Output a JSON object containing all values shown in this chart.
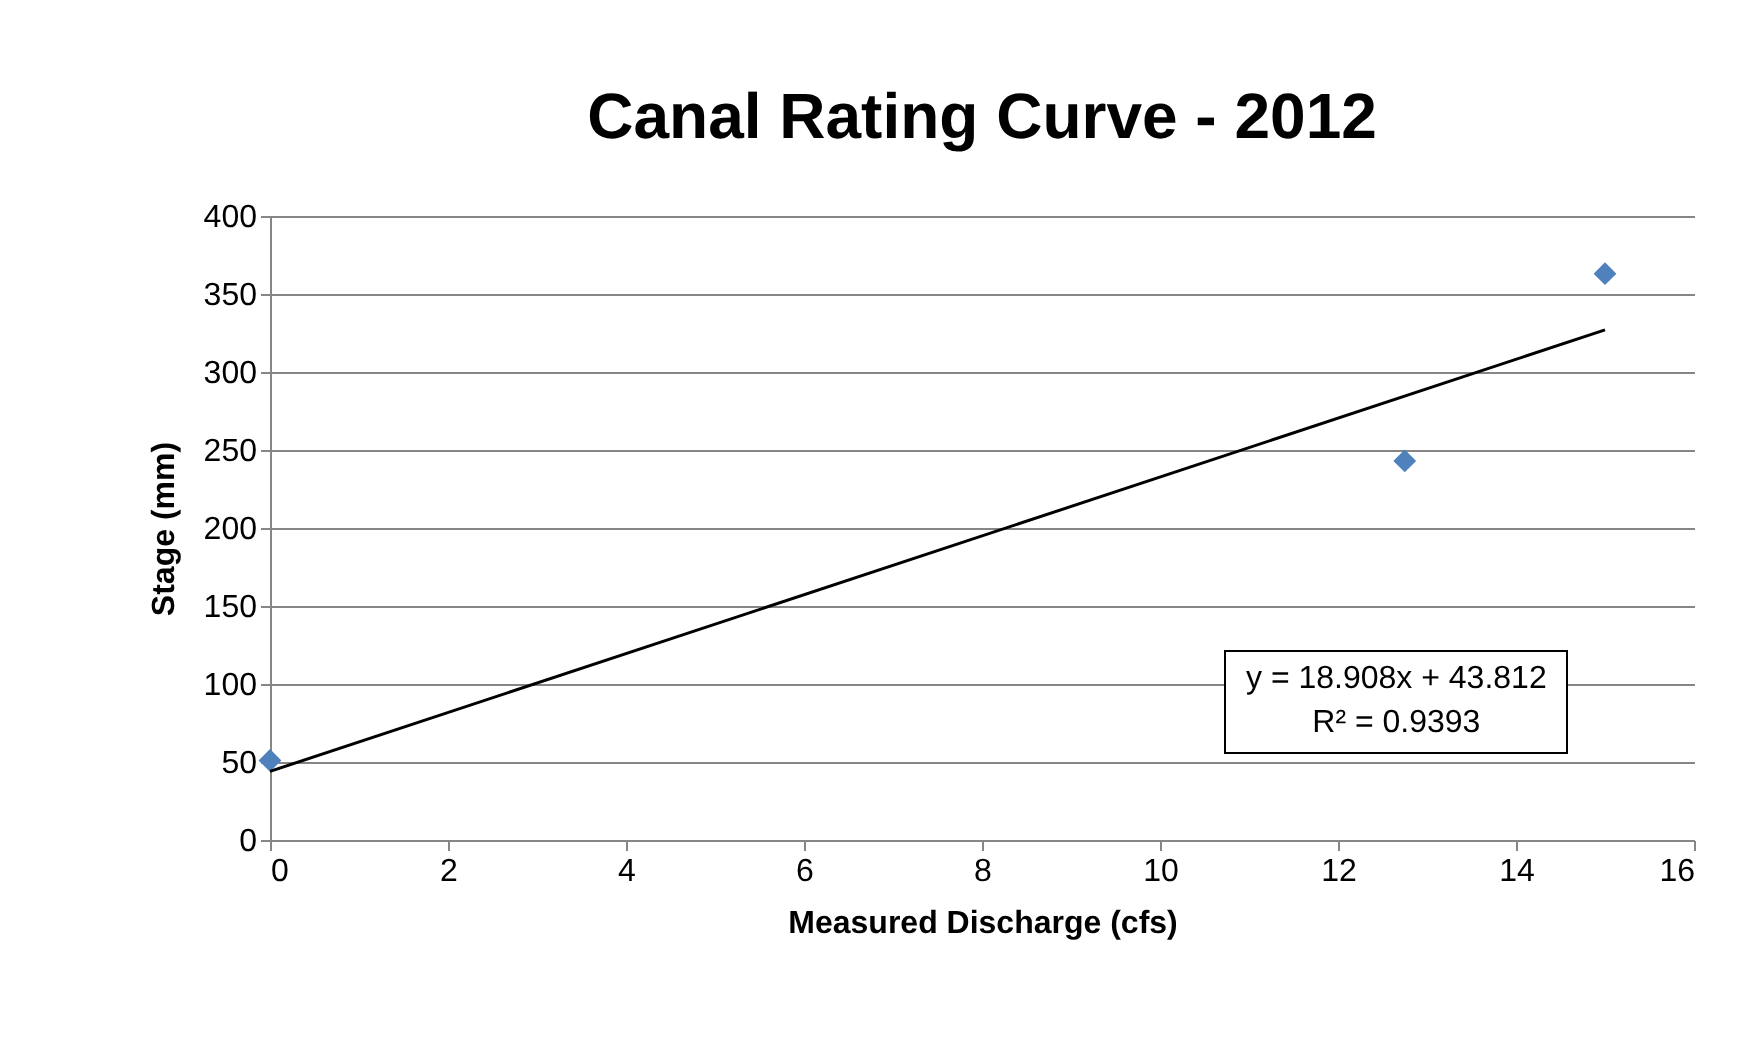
{
  "chart_data": {
    "type": "scatter",
    "title": "Canal Rating Curve - 2012",
    "xlabel": "Measured Discharge (cfs)",
    "ylabel": "Stage (mm)",
    "annotations": [
      "y = 18.908x + 43.812",
      "R² = 0.9393"
    ],
    "xlim": [
      0,
      16
    ],
    "xticks": [
      0,
      2,
      4,
      6,
      8,
      10,
      12,
      14,
      16
    ],
    "ylim": [
      0,
      400
    ],
    "yticks": [
      0,
      50,
      100,
      150,
      200,
      250,
      300,
      350,
      400
    ],
    "grid": "y",
    "marker": "diamond",
    "series": [
      {
        "color": "#4f81bd",
        "x": [
          0,
          12.75,
          15
        ],
        "values": [
          51,
          243,
          363
        ]
      },
      {
        "type": "line",
        "marker": "none",
        "color": "#000000",
        "x": [
          0,
          15
        ],
        "values": [
          44,
          327
        ]
      }
    ]
  }
}
